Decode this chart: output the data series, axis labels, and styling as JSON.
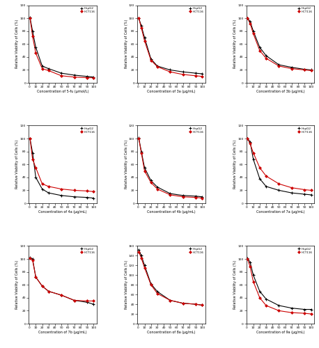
{
  "subplots": [
    {
      "xlabel": "Concentration of 5-fu (μmol/L)",
      "x": [
        1,
        5,
        10,
        20,
        30,
        50,
        70,
        90,
        100
      ],
      "hepg2": [
        101,
        80,
        55,
        26,
        22,
        15,
        12,
        10,
        9
      ],
      "hct116": [
        100,
        72,
        46,
        22,
        19,
        11,
        9,
        8,
        8
      ],
      "ylim": [
        0,
        120
      ],
      "yticks": [
        0,
        20,
        40,
        60,
        80,
        100,
        120
      ]
    },
    {
      "xlabel": "Concentration of 3a (μg/mL)",
      "x": [
        1,
        5,
        10,
        20,
        30,
        50,
        70,
        90,
        100
      ],
      "hepg2": [
        100,
        88,
        70,
        37,
        26,
        20,
        17,
        15,
        14
      ],
      "hct116": [
        100,
        85,
        65,
        35,
        25,
        17,
        13,
        11,
        10
      ],
      "ylim": [
        0,
        120
      ],
      "yticks": [
        0,
        20,
        40,
        60,
        80,
        100,
        120
      ]
    },
    {
      "xlabel": "Concentration of 3b (μg/mL)",
      "x": [
        1,
        5,
        10,
        20,
        30,
        50,
        70,
        90,
        100
      ],
      "hepg2": [
        100,
        95,
        80,
        55,
        42,
        28,
        24,
        21,
        20
      ],
      "hct116": [
        100,
        92,
        76,
        50,
        38,
        26,
        22,
        20,
        19
      ],
      "ylim": [
        0,
        120
      ],
      "yticks": [
        0,
        20,
        40,
        60,
        80,
        100,
        120
      ]
    },
    {
      "xlabel": "Concentration of 4a (μg/mL)",
      "x": [
        1,
        5,
        10,
        20,
        30,
        50,
        70,
        90,
        100
      ],
      "hepg2": [
        100,
        78,
        40,
        22,
        16,
        12,
        10,
        9,
        8
      ],
      "hct116": [
        100,
        68,
        55,
        30,
        26,
        22,
        20,
        19,
        18
      ],
      "ylim": [
        0,
        120
      ],
      "yticks": [
        0,
        20,
        40,
        60,
        80,
        100,
        120
      ]
    },
    {
      "xlabel": "Concentration of 4b (μg/mL)",
      "x": [
        1,
        5,
        10,
        20,
        30,
        50,
        70,
        90,
        100
      ],
      "hepg2": [
        101,
        80,
        55,
        35,
        25,
        15,
        12,
        11,
        10
      ],
      "hct116": [
        100,
        78,
        50,
        32,
        22,
        13,
        10,
        9,
        8
      ],
      "ylim": [
        0,
        120
      ],
      "yticks": [
        0,
        20,
        40,
        60,
        80,
        100,
        120
      ]
    },
    {
      "xlabel": "Concentration of 7a (μg/mL)",
      "x": [
        1,
        5,
        10,
        20,
        30,
        50,
        70,
        90,
        100
      ],
      "hepg2": [
        100,
        95,
        68,
        38,
        26,
        20,
        16,
        14,
        13
      ],
      "hct116": [
        100,
        92,
        78,
        55,
        42,
        30,
        24,
        21,
        20
      ],
      "ylim": [
        0,
        120
      ],
      "yticks": [
        0,
        20,
        40,
        60,
        80,
        100,
        120
      ]
    },
    {
      "xlabel": "Concentration of 7b (μg/mL)",
      "x": [
        1,
        5,
        10,
        20,
        30,
        50,
        70,
        90,
        100
      ],
      "hepg2": [
        102,
        100,
        72,
        58,
        50,
        44,
        36,
        33,
        30
      ],
      "hct116": [
        101,
        98,
        72,
        58,
        50,
        44,
        36,
        35,
        35
      ],
      "ylim": [
        0,
        120
      ],
      "yticks": [
        0,
        20,
        40,
        60,
        80,
        100,
        120
      ]
    },
    {
      "xlabel": "Concentration of 8a (μg/mL)",
      "x": [
        1,
        5,
        10,
        20,
        30,
        50,
        70,
        90,
        100
      ],
      "hepg2": [
        152,
        140,
        120,
        82,
        66,
        48,
        42,
        40,
        38
      ],
      "hct116": [
        148,
        135,
        115,
        80,
        62,
        48,
        42,
        40,
        38
      ],
      "ylim": [
        0,
        160
      ],
      "yticks": [
        0,
        20,
        40,
        60,
        80,
        100,
        120,
        140,
        160
      ]
    },
    {
      "xlabel": "Concentration of 9a (μg/mL)",
      "x": [
        1,
        5,
        10,
        20,
        30,
        50,
        70,
        90,
        100
      ],
      "hepg2": [
        101,
        95,
        75,
        50,
        38,
        28,
        24,
        22,
        22
      ],
      "hct116": [
        100,
        88,
        65,
        40,
        28,
        20,
        17,
        16,
        15
      ],
      "ylim": [
        0,
        120
      ],
      "yticks": [
        0,
        20,
        40,
        60,
        80,
        100,
        120
      ]
    }
  ],
  "hepg2_color": "#000000",
  "hct116_color": "#cc0000",
  "ylabel": "Relative Viability of Cells (%)",
  "xticks": [
    0,
    10,
    20,
    30,
    40,
    50,
    60,
    70,
    80,
    90,
    100
  ]
}
